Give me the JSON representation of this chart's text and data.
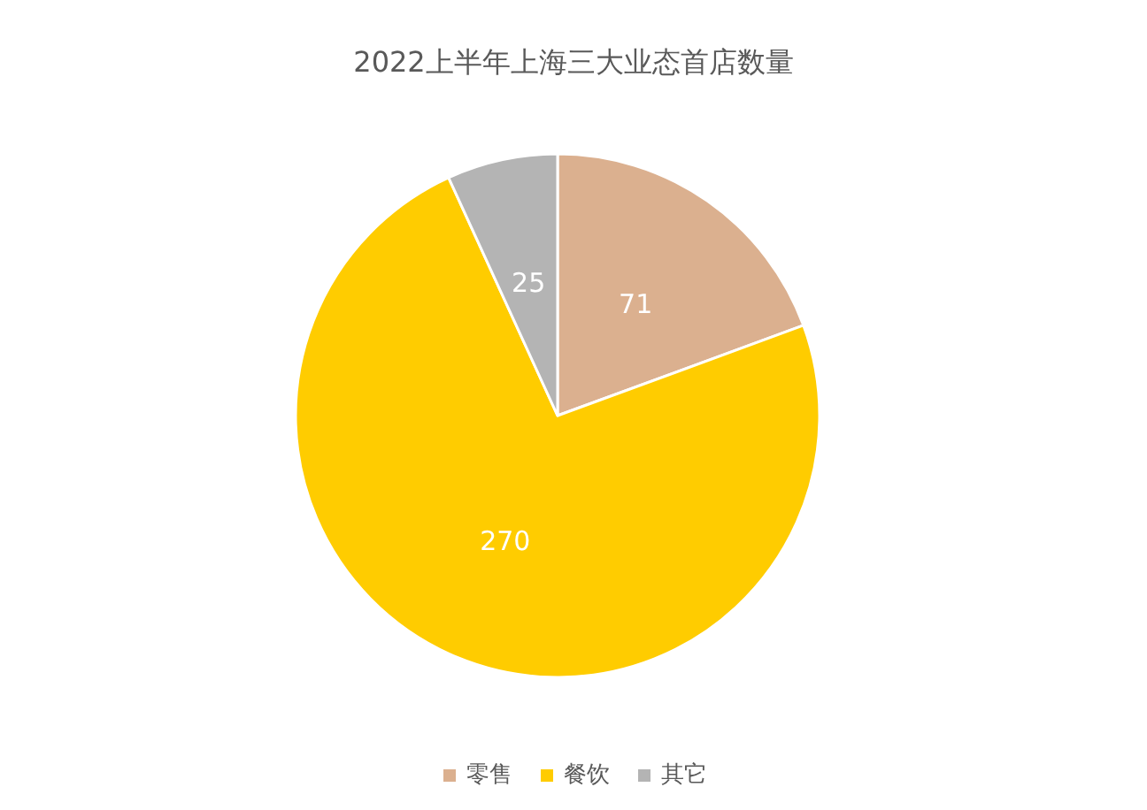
{
  "chart_data": {
    "type": "pie",
    "title": "2022上半年上海三大业态首店数量",
    "categories": [
      "零售",
      "餐饮",
      "其它"
    ],
    "values": [
      71,
      270,
      25
    ],
    "colors": [
      "#dbb08f",
      "#ffcc00",
      "#b4b4b4"
    ],
    "data_labels": true,
    "legend": "bottom"
  }
}
